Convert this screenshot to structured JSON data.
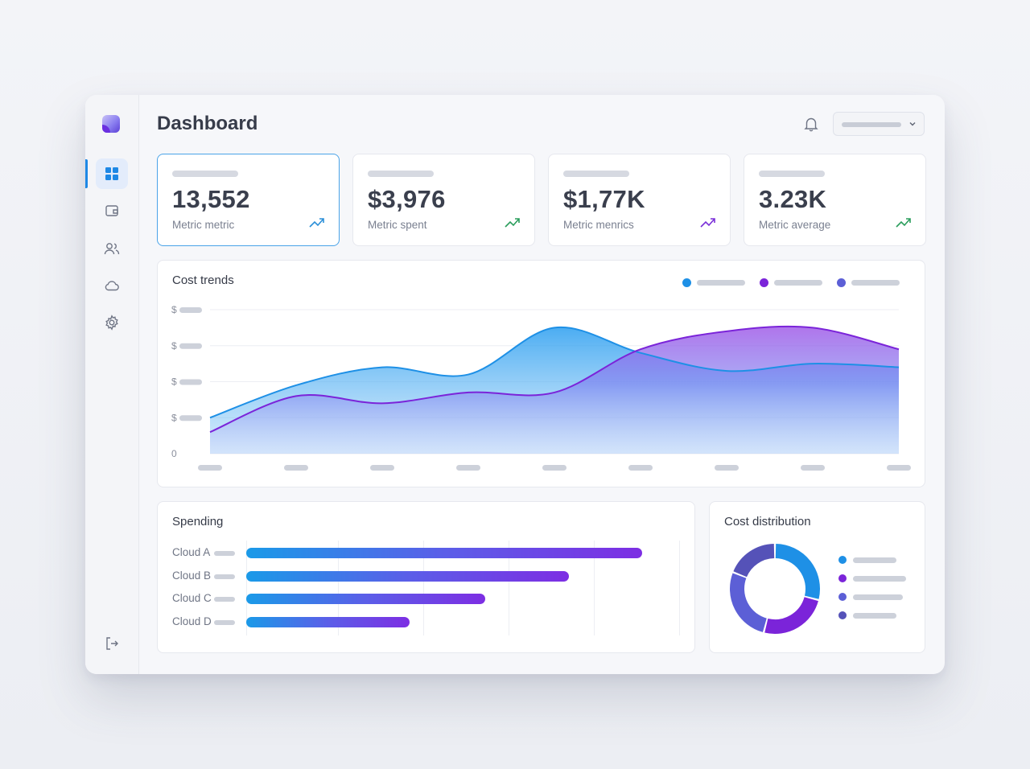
{
  "header": {
    "title": "Dashboard"
  },
  "sidebar": {
    "items": [
      {
        "icon": "dashboard-icon",
        "active": true
      },
      {
        "icon": "wallet-icon"
      },
      {
        "icon": "users-icon"
      },
      {
        "icon": "cloud-icon"
      },
      {
        "icon": "gear-icon"
      }
    ],
    "bottom_icon": "logout-icon"
  },
  "metrics": [
    {
      "value": "13,552",
      "label": "Metric metric",
      "trend_color": "#2b8fd8"
    },
    {
      "value": "$3,976",
      "label": "Metric spent",
      "trend_color": "#2a9d5c"
    },
    {
      "value": "$1,77K",
      "label": "Metric menrics",
      "trend_color": "#7a2fd8"
    },
    {
      "value": "3.23K",
      "label": "Metric average",
      "trend_color": "#2a9d5c"
    }
  ],
  "cost_trends": {
    "title": "Cost trends",
    "legend_colors": [
      "#1e90e6",
      "#7b24d9",
      "#5c5fd6"
    ],
    "chart_data": {
      "type": "area",
      "title": "Cost trends",
      "y_tick_labels": [
        "$",
        "$",
        "$",
        "$",
        "0"
      ],
      "ylim": [
        0,
        4
      ],
      "x": [
        0,
        1,
        2,
        3,
        4,
        5,
        6,
        7,
        8
      ],
      "series": [
        {
          "color": "#1e90e6",
          "values": [
            1.0,
            1.9,
            2.4,
            2.2,
            3.5,
            2.8,
            2.3,
            2.5,
            2.4
          ]
        },
        {
          "color": "#7b24d9",
          "values": [
            0.6,
            1.6,
            1.4,
            1.7,
            1.7,
            2.9,
            3.4,
            3.5,
            2.9
          ]
        }
      ],
      "grid": true
    }
  },
  "spending": {
    "title": "Spending",
    "chart_data": {
      "type": "bar",
      "orientation": "horizontal",
      "categories": [
        "Cloud A",
        "Cloud B",
        "Cloud C",
        "Cloud D"
      ],
      "values": [
        0.92,
        0.75,
        0.555,
        0.38
      ],
      "colors": [
        "#1a9ae8",
        "#7d2ee3"
      ]
    }
  },
  "distribution": {
    "title": "Cost distribution",
    "chart_data": {
      "type": "pie",
      "donut": true,
      "values": [
        29,
        25,
        27,
        19
      ],
      "colors": [
        "#1e90e6",
        "#7b24d9",
        "#5c5fd6",
        "#5552b8"
      ]
    },
    "legend_colors": [
      "#1e90e6",
      "#7b24d9",
      "#5c5fd6",
      "#5552b8"
    ]
  }
}
